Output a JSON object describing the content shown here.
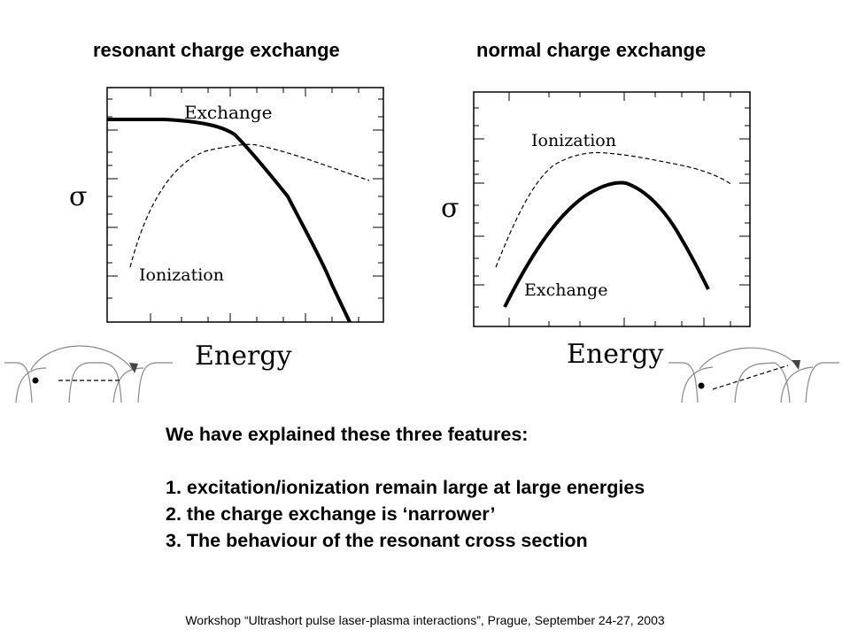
{
  "headings": {
    "left": "resonant charge exchange",
    "right": "normal charge exchange"
  },
  "plots": {
    "left": {
      "y_label": "σ",
      "x_label": "Energy",
      "curve_labels": {
        "exchange": "Exchange",
        "ionization": "Ionization"
      }
    },
    "right": {
      "y_label": "σ",
      "x_label": "Energy",
      "curve_labels": {
        "exchange": "Exchange",
        "ionization": "Ionization"
      }
    }
  },
  "summary": {
    "intro": "We have explained these three features:",
    "items": [
      "1. excitation/ionization remain large at large energies",
      "2. the charge exchange is ‘narrower’",
      "3. The behaviour of the resonant cross section"
    ]
  },
  "footer": "Workshop “Ultrashort pulse laser-plasma interactions”, Prague, September 24-27, 2003"
}
